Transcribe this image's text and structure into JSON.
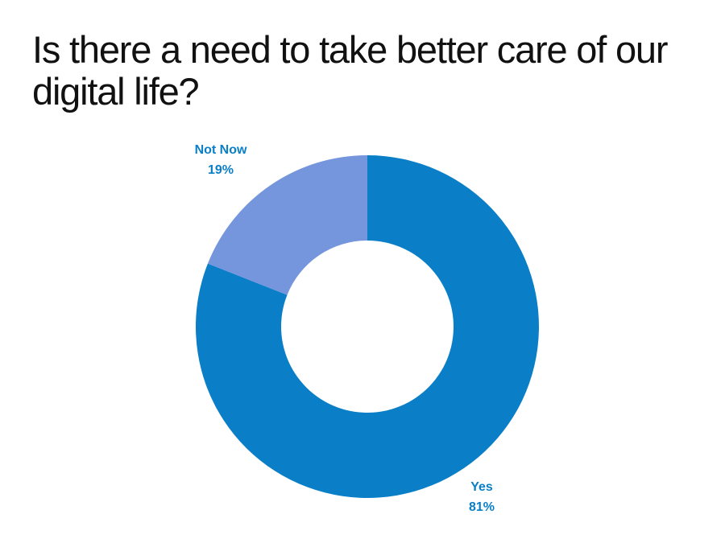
{
  "title": "Is there a need to take better care of our digital life?",
  "chart_data": {
    "type": "pie",
    "variant": "donut",
    "title": "Is there a need to take better care of our digital life?",
    "slices": [
      {
        "label": "Yes",
        "value": 81,
        "value_label": "81%",
        "color": "#0a7fc7"
      },
      {
        "label": "Not Now",
        "value": 19,
        "value_label": "19%",
        "color": "#7595dd"
      }
    ],
    "legend": "none",
    "label_color": "#0a7fc7"
  }
}
